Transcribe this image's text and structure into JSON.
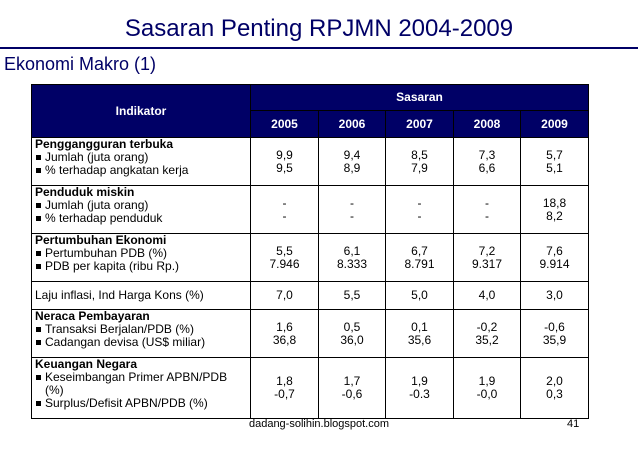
{
  "title": "Sasaran Penting RPJMN 2004-2009",
  "subtitle": "Ekonomi Makro (1)",
  "table": {
    "indikator_header": "Indikator",
    "sasaran_header": "Sasaran",
    "years": [
      "2005",
      "2006",
      "2007",
      "2008",
      "2009"
    ],
    "rows": [
      {
        "title": "Penggangguran terbuka",
        "items": [
          "Jumlah (juta orang)",
          "% terhadap angkatan kerja"
        ],
        "values": [
          [
            "9,9",
            "9,5"
          ],
          [
            "9,4",
            "8,9"
          ],
          [
            "8,5",
            "7,9"
          ],
          [
            "7,3",
            "6,6"
          ],
          [
            "5,7",
            "5,1"
          ]
        ]
      },
      {
        "title": "Penduduk miskin",
        "items": [
          "Jumlah (juta orang)",
          "% terhadap penduduk"
        ],
        "values": [
          [
            "-",
            "-"
          ],
          [
            "-",
            "-"
          ],
          [
            "-",
            "-"
          ],
          [
            "-",
            "-"
          ],
          [
            "18,8",
            "8,2"
          ]
        ]
      },
      {
        "title": "Pertumbuhan Ekonomi",
        "items": [
          "Pertumbuhan PDB (%)",
          "PDB per kapita (ribu Rp.)"
        ],
        "values": [
          [
            "5,5",
            "7.946"
          ],
          [
            "6,1",
            "8.333"
          ],
          [
            "6,7",
            "8.791"
          ],
          [
            "7,2",
            "9.317"
          ],
          [
            "7,6",
            "9.914"
          ]
        ]
      },
      {
        "label": "Laju inflasi, Ind Harga Kons (%)",
        "values": [
          "7,0",
          "5,5",
          "5,0",
          "4,0",
          "3,0"
        ]
      },
      {
        "title": "Neraca Pembayaran",
        "items": [
          "Transaksi Berjalan/PDB (%)",
          "Cadangan devisa (US$ miliar)"
        ],
        "values": [
          [
            "1,6",
            "36,8"
          ],
          [
            "0,5",
            "36,0"
          ],
          [
            "0,1",
            "35,6"
          ],
          [
            "-0,2",
            "35,2"
          ],
          [
            "-0,6",
            "35,9"
          ]
        ]
      },
      {
        "title": "Keuangan Negara",
        "items": [
          "Keseimbangan Primer APBN/PDB",
          "(%)",
          "Surplus/Defisit APBN/PDB (%)"
        ],
        "values": [
          [
            "1,8",
            "-0,7"
          ],
          [
            "1,7",
            "-0,6"
          ],
          [
            "1,9",
            "-0.3"
          ],
          [
            "1,9",
            "-0,0"
          ],
          [
            "2,0",
            "0,3"
          ]
        ]
      }
    ]
  },
  "footer": "dadang-solihin.blogspot.com",
  "page_number": "41"
}
